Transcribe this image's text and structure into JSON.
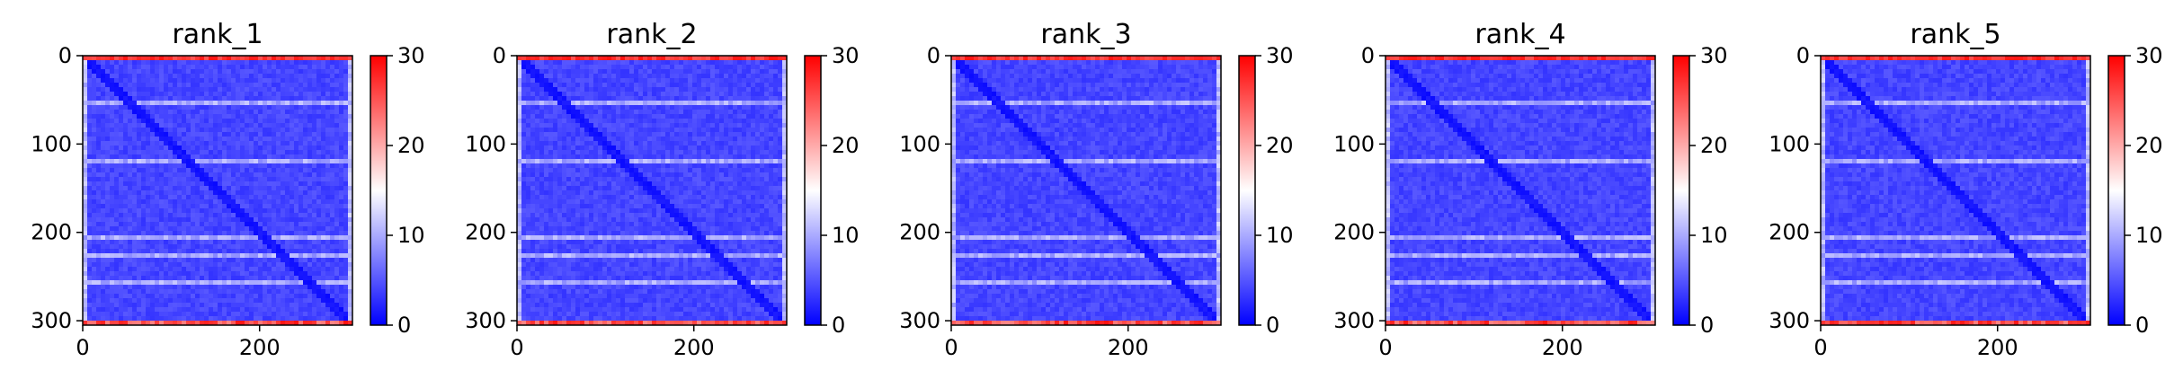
{
  "chart_data": [
    {
      "type": "heatmap",
      "title": "rank_1",
      "variant": 0,
      "x_ticks": [
        0,
        200
      ],
      "y_ticks": [
        0,
        100,
        200,
        300
      ],
      "xlim": [
        0,
        305
      ],
      "ylim": [
        305,
        0
      ],
      "colorbar": {
        "range": [
          0,
          30
        ],
        "ticks": [
          0,
          10,
          20,
          30
        ],
        "colormap": [
          "#0000ff",
          "#ffffff",
          "#ff0000"
        ]
      }
    },
    {
      "type": "heatmap",
      "title": "rank_2",
      "variant": 1,
      "x_ticks": [
        0,
        200
      ],
      "y_ticks": [
        0,
        100,
        200,
        300
      ],
      "xlim": [
        0,
        305
      ],
      "ylim": [
        305,
        0
      ],
      "colorbar": {
        "range": [
          0,
          30
        ],
        "ticks": [
          0,
          10,
          20,
          30
        ],
        "colormap": [
          "#0000ff",
          "#ffffff",
          "#ff0000"
        ]
      }
    },
    {
      "type": "heatmap",
      "title": "rank_3",
      "variant": 2,
      "x_ticks": [
        0,
        200
      ],
      "y_ticks": [
        0,
        100,
        200,
        300
      ],
      "xlim": [
        0,
        305
      ],
      "ylim": [
        305,
        0
      ],
      "colorbar": {
        "range": [
          0,
          30
        ],
        "ticks": [
          0,
          10,
          20,
          30
        ],
        "colormap": [
          "#0000ff",
          "#ffffff",
          "#ff0000"
        ]
      }
    },
    {
      "type": "heatmap",
      "title": "rank_4",
      "variant": 3,
      "x_ticks": [
        0,
        200
      ],
      "y_ticks": [
        0,
        100,
        200,
        300
      ],
      "xlim": [
        0,
        305
      ],
      "ylim": [
        305,
        0
      ],
      "colorbar": {
        "range": [
          0,
          30
        ],
        "ticks": [
          0,
          10,
          20,
          30
        ],
        "colormap": [
          "#0000ff",
          "#ffffff",
          "#ff0000"
        ]
      }
    },
    {
      "type": "heatmap",
      "title": "rank_5",
      "variant": 4,
      "x_ticks": [
        0,
        200
      ],
      "y_ticks": [
        0,
        100,
        200,
        300
      ],
      "xlim": [
        0,
        305
      ],
      "ylim": [
        305,
        0
      ],
      "colorbar": {
        "range": [
          0,
          30
        ],
        "ticks": [
          0,
          10,
          20,
          30
        ],
        "colormap": [
          "#0000ff",
          "#ffffff",
          "#ff0000"
        ]
      }
    }
  ]
}
